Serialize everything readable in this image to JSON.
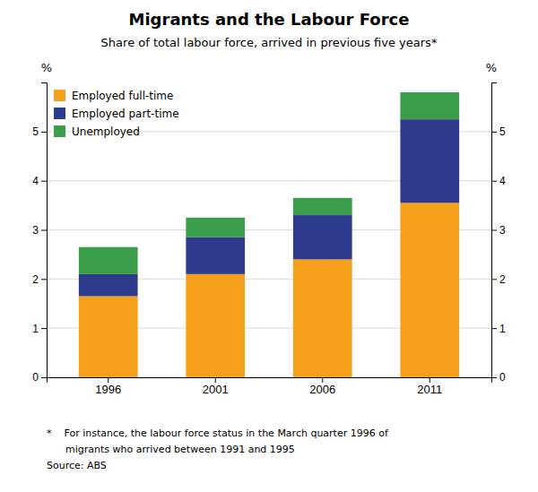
{
  "chart_data": {
    "type": "bar",
    "stacked": true,
    "title": "Migrants and the Labour Force",
    "subtitle": "Share of total labour force, arrived in previous five years*",
    "categories": [
      "1996",
      "2001",
      "2006",
      "2011"
    ],
    "series": [
      {
        "name": "Employed full-time",
        "color": "#F5A01A",
        "values": [
          1.65,
          2.1,
          2.4,
          3.55
        ]
      },
      {
        "name": "Employed part-time",
        "color": "#2E3A8C",
        "values": [
          0.45,
          0.75,
          0.9,
          1.7
        ]
      },
      {
        "name": "Unemployed",
        "color": "#3A9E4A",
        "values": [
          0.55,
          0.4,
          0.35,
          0.55
        ]
      }
    ],
    "ylim": [
      0,
      6
    ],
    "yticks": [
      0,
      1,
      2,
      3,
      4,
      5
    ],
    "y2lim": [
      0,
      6
    ],
    "y2ticks": [
      0,
      1,
      2,
      3,
      4,
      5
    ],
    "ylabel": "%",
    "y2label": "%",
    "grid": true,
    "legend": "upper left",
    "annotations": [
      "*    For instance, the labour force status in the March quarter 1996 of",
      "      migrants who arrived between 1991 and 1995",
      "Source: ABS"
    ]
  }
}
